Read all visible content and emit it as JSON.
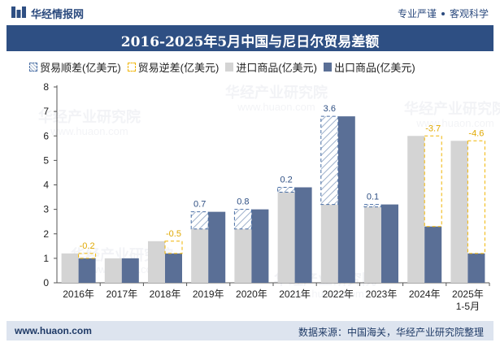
{
  "header": {
    "brand": "华经情报网",
    "tagline_left": "专业严谨",
    "tagline_right": "客观科学"
  },
  "footer": {
    "site": "www.huaon.com",
    "source": "数据来源：中国海关，华经产业研究院整理"
  },
  "watermark": "华经产业研究院",
  "watermark_url": "www.huaon.com",
  "colors": {
    "title_bg": "#2e4f83",
    "import": "#d4d4d4",
    "export": "#5a6f96",
    "surplus_border": "#4a6fa5",
    "deficit_border": "#f0b400",
    "surplus_label": "#2e4f83",
    "deficit_label": "#e0a800"
  },
  "chart_data": {
    "type": "bar",
    "title": "2016-2025年5月中国与尼日尔贸易差额",
    "xlabel": "",
    "ylabel": "",
    "ylim": [
      0,
      8
    ],
    "yticks": [
      0,
      1,
      2,
      3,
      4,
      5,
      6,
      7,
      8
    ],
    "grid": false,
    "legend_position": "top",
    "categories": [
      "2016年",
      "2017年",
      "2018年",
      "2019年",
      "2020年",
      "2021年",
      "2022年",
      "2023年",
      "2024年",
      "2025年\n1-5月"
    ],
    "series": [
      {
        "name": "进口商品(亿美元)",
        "values": [
          1.2,
          1.0,
          1.7,
          2.2,
          2.2,
          3.7,
          3.2,
          3.1,
          6.0,
          5.8
        ]
      },
      {
        "name": "出口商品(亿美元)",
        "values": [
          1.0,
          1.0,
          1.2,
          2.9,
          3.0,
          3.9,
          6.8,
          3.2,
          2.3,
          1.2
        ]
      }
    ],
    "balance": {
      "values": [
        -0.2,
        0.0,
        -0.5,
        0.7,
        0.8,
        0.2,
        3.6,
        0.1,
        -3.7,
        -4.6
      ],
      "labels": [
        "-0.2",
        "",
        "-0.5",
        "0.7",
        "0.8",
        "0.2",
        "3.6",
        "0.1",
        "-3.7",
        "-4.6"
      ]
    },
    "legend": [
      "贸易顺差(亿美元)",
      "贸易逆差(亿美元)",
      "进口商品(亿美元)",
      "出口商品(亿美元)"
    ]
  }
}
